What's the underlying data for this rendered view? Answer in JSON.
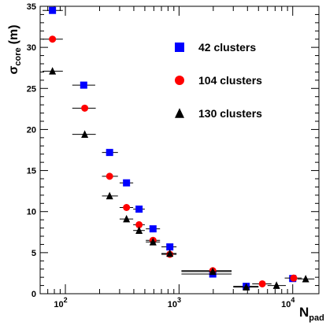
{
  "chart_data": {
    "type": "scatter",
    "xscale": "log",
    "xlim": [
      60,
      17000
    ],
    "ylim": [
      0,
      35
    ],
    "grid": false,
    "legend_position": "top-right",
    "xlabel": {
      "base": "N",
      "sub": "pad"
    },
    "ylabel": {
      "base": "σ",
      "sub": "core",
      "unit": "(m)"
    },
    "y_ticks": [
      0,
      5,
      10,
      15,
      20,
      25,
      30,
      35
    ],
    "x_ticks": [
      {
        "value": 100,
        "base": "10",
        "exp": "2"
      },
      {
        "value": 1000,
        "base": "10",
        "exp": "3"
      },
      {
        "value": 10000,
        "base": "10",
        "exp": "4"
      }
    ],
    "series": [
      {
        "name": "42 clusters",
        "marker": "square",
        "color": "#0000ff",
        "points": [
          {
            "x": 77,
            "y": 34.5,
            "xerr": [
              63,
              95
            ]
          },
          {
            "x": 145,
            "y": 25.4,
            "xerr": [
              115,
              183
            ]
          },
          {
            "x": 245,
            "y": 17.2,
            "xerr": [
              210,
              290
            ]
          },
          {
            "x": 345,
            "y": 13.5,
            "xerr": [
              300,
              395
            ]
          },
          {
            "x": 445,
            "y": 10.3,
            "xerr": [
              395,
              500
            ]
          },
          {
            "x": 590,
            "y": 7.9,
            "xerr": [
              510,
              680
            ]
          },
          {
            "x": 830,
            "y": 5.7,
            "xerr": [
              700,
              950
            ]
          },
          {
            "x": 1980,
            "y": 2.4,
            "xerr": [
              1050,
              2900
            ]
          },
          {
            "x": 3900,
            "y": 0.9,
            "xerr": [
              3000,
              5000
            ]
          },
          {
            "x": 10000,
            "y": 1.85
          }
        ]
      },
      {
        "name": "104 clusters",
        "marker": "circle",
        "color": "#ff0000",
        "points": [
          {
            "x": 77,
            "y": 31.0,
            "xerr": [
              63,
              95
            ]
          },
          {
            "x": 148,
            "y": 22.6,
            "xerr": [
              115,
              185
            ]
          },
          {
            "x": 245,
            "y": 14.3,
            "xerr": [
              210,
              290
            ]
          },
          {
            "x": 345,
            "y": 10.5,
            "xerr": [
              300,
              395
            ]
          },
          {
            "x": 445,
            "y": 8.4,
            "xerr": [
              395,
              500
            ]
          },
          {
            "x": 590,
            "y": 6.5,
            "xerr": [
              510,
              680
            ]
          },
          {
            "x": 830,
            "y": 4.8,
            "xerr": [
              700,
              950
            ]
          },
          {
            "x": 1980,
            "y": 2.8,
            "xerr": [
              1050,
              2900
            ]
          },
          {
            "x": 5400,
            "y": 1.2,
            "xerr": [
              4400,
              6500
            ]
          },
          {
            "x": 10200,
            "y": 1.9,
            "xerr": [
              8500,
              12000
            ]
          }
        ]
      },
      {
        "name": "130 clusters",
        "marker": "triangle",
        "color": "#000000",
        "points": [
          {
            "x": 77,
            "y": 27.1,
            "xerr": [
              63,
              95
            ]
          },
          {
            "x": 148,
            "y": 19.4,
            "xerr": [
              115,
              185
            ]
          },
          {
            "x": 245,
            "y": 11.9,
            "xerr": [
              210,
              290
            ]
          },
          {
            "x": 345,
            "y": 9.1,
            "xerr": [
              300,
              395
            ]
          },
          {
            "x": 445,
            "y": 7.7,
            "xerr": [
              395,
              500
            ]
          },
          {
            "x": 590,
            "y": 6.3,
            "xerr": [
              510,
              680
            ]
          },
          {
            "x": 830,
            "y": 4.9,
            "xerr": [
              700,
              950
            ]
          },
          {
            "x": 1980,
            "y": 2.7,
            "xerr": [
              1050,
              2900
            ]
          },
          {
            "x": 3900,
            "y": 0.8,
            "xerr": [
              3000,
              5000
            ]
          },
          {
            "x": 7200,
            "y": 1.0,
            "xerr": [
              6000,
              8700
            ]
          },
          {
            "x": 13000,
            "y": 1.8,
            "xerr": [
              11000,
              15500
            ]
          }
        ]
      }
    ]
  }
}
